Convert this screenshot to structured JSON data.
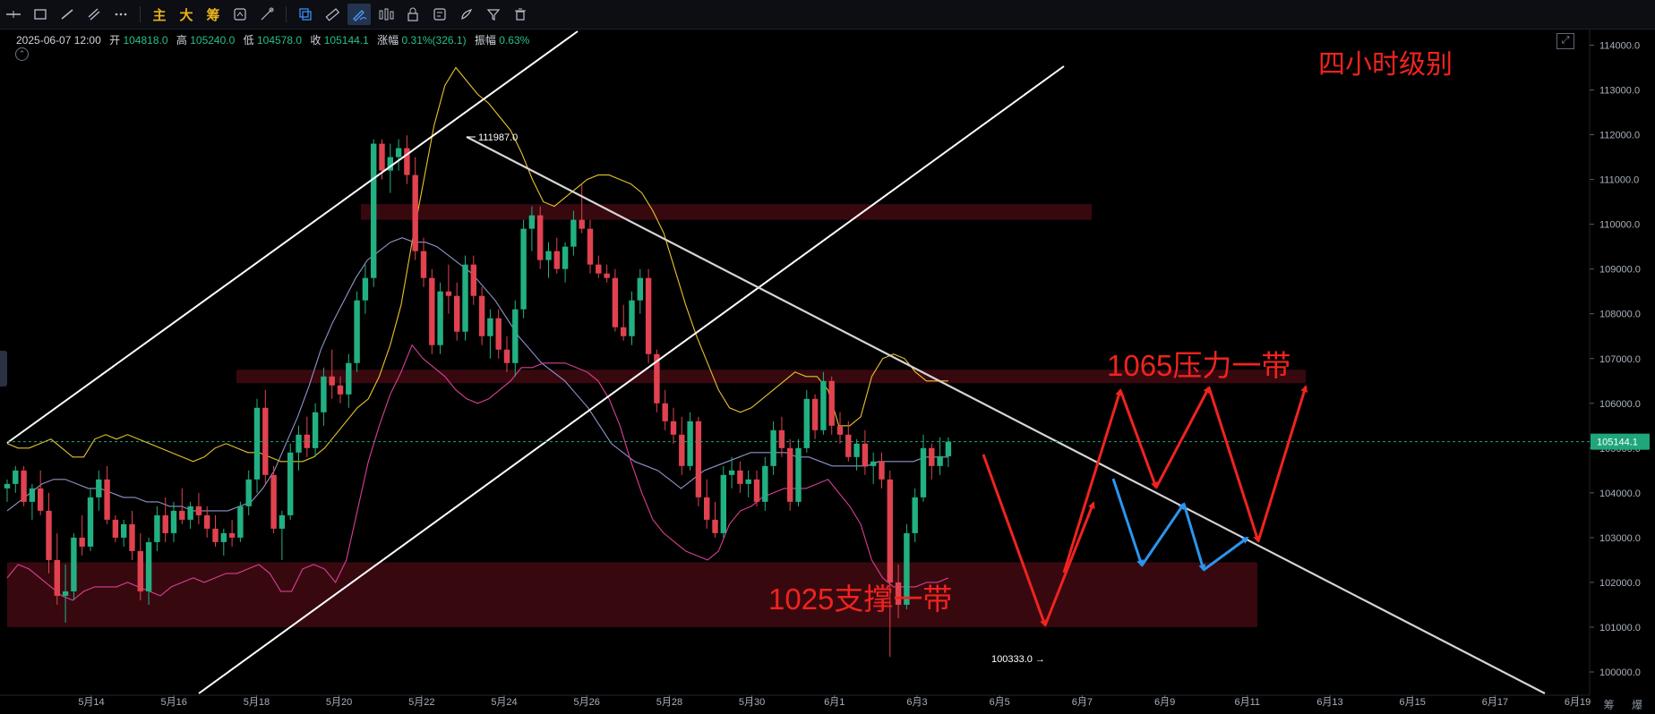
{
  "toolbar": {
    "left_tools": [
      "horizontal-line-icon",
      "rectangle-icon",
      "trend-line-icon",
      "parallel-channel-icon",
      "more-icon"
    ],
    "indicator_labels": [
      "主",
      "大",
      "筹"
    ],
    "right_tools": [
      "layers-icon",
      "ruler-icon",
      "pen-icon",
      "bars-icon",
      "lock-icon",
      "alert-icon",
      "brush-icon",
      "filter-icon",
      "trash-icon"
    ]
  },
  "info": {
    "datetime": "2025-06-07 12:00",
    "open_label": "开",
    "open": "104818.0",
    "high_label": "高",
    "high": "105240.0",
    "low_label": "低",
    "low": "104578.0",
    "close_label": "收",
    "close": "105144.1",
    "change_label": "涨幅",
    "change": "0.31%(326.1)",
    "amplitude_label": "振幅",
    "amplitude": "0.63%"
  },
  "corner_buttons": "筹 爆",
  "chart_data": {
    "type": "candlestick",
    "title": "四小时级别",
    "ylim": [
      99600,
      114400
    ],
    "x_ticks": [
      "5月14",
      "5月16",
      "5月18",
      "5月20",
      "5月22",
      "5月24",
      "5月26",
      "5月28",
      "5月30",
      "6月1",
      "6月3",
      "6月5",
      "6月7",
      "6月9",
      "6月11",
      "6月13",
      "6月15",
      "6月17",
      "6月19"
    ],
    "y_ticks": [
      100000,
      101000,
      102000,
      103000,
      104000,
      105000,
      106000,
      107000,
      108000,
      109000,
      110000,
      111000,
      112000,
      113000,
      114000
    ],
    "current_price": 105144.1,
    "colors": {
      "up": "#22b082",
      "down": "#e0424f",
      "upper_band": "#e6c42c",
      "middle_band": "#8f96c8",
      "lower_band": "#d93f95",
      "zone": "#3a0a10",
      "annotation_red": "#f0231f",
      "annotation_blue": "#2b95ee",
      "trend_white": "#ffffff",
      "descending_line": "#d5d5d5"
    },
    "annotations": {
      "resistance_label": "1065压力一带",
      "support_label": "1025支撑一带",
      "high_marker": "111987.0",
      "low_marker": "100333.0"
    },
    "zones": [
      {
        "name": "upper-zone",
        "low": 110100,
        "high": 110450
      },
      {
        "name": "resistance-zone",
        "low": 106450,
        "high": 106750
      },
      {
        "name": "support-zone",
        "low": 101000,
        "high": 102450
      }
    ],
    "candles": [
      [
        104100,
        104300,
        103800,
        104200
      ],
      [
        104200,
        104600,
        104000,
        104500
      ],
      [
        104500,
        104600,
        103700,
        103800
      ],
      [
        103800,
        104200,
        103400,
        104100
      ],
      [
        104100,
        104500,
        103500,
        103600
      ],
      [
        103600,
        104000,
        102200,
        102500
      ],
      [
        102500,
        103100,
        101500,
        101700
      ],
      [
        101700,
        102400,
        101100,
        101800
      ],
      [
        101800,
        103100,
        101600,
        103000
      ],
      [
        103000,
        103500,
        102600,
        102800
      ],
      [
        102800,
        104100,
        102700,
        103900
      ],
      [
        103900,
        104500,
        103600,
        104300
      ],
      [
        104300,
        104600,
        103300,
        103400
      ],
      [
        103400,
        103500,
        102900,
        103000
      ],
      [
        103000,
        103400,
        102800,
        103300
      ],
      [
        103300,
        103600,
        102500,
        102700
      ],
      [
        102700,
        103100,
        101600,
        101800
      ],
      [
        101800,
        103000,
        101500,
        102900
      ],
      [
        102900,
        103700,
        102700,
        103500
      ],
      [
        103500,
        103900,
        102900,
        103100
      ],
      [
        103100,
        103800,
        102900,
        103600
      ],
      [
        103600,
        104100,
        103300,
        103400
      ],
      [
        103400,
        103800,
        103200,
        103700
      ],
      [
        103700,
        104000,
        103300,
        103500
      ],
      [
        103500,
        103700,
        103000,
        103200
      ],
      [
        103200,
        103500,
        102800,
        102900
      ],
      [
        102900,
        103200,
        102600,
        103100
      ],
      [
        103100,
        103400,
        102800,
        103000
      ],
      [
        103000,
        103800,
        102900,
        103700
      ],
      [
        103700,
        104500,
        103500,
        104300
      ],
      [
        104300,
        106100,
        104000,
        105900
      ],
      [
        105900,
        106300,
        104200,
        104400
      ],
      [
        104400,
        104600,
        103100,
        103200
      ],
      [
        103200,
        103600,
        102500,
        103500
      ],
      [
        103500,
        105100,
        103400,
        104900
      ],
      [
        104900,
        105500,
        104500,
        105300
      ],
      [
        105300,
        105700,
        104800,
        105000
      ],
      [
        105000,
        106000,
        104800,
        105800
      ],
      [
        105800,
        106800,
        105500,
        106600
      ],
      [
        106600,
        107200,
        106100,
        106400
      ],
      [
        106400,
        106600,
        106000,
        106200
      ],
      [
        106200,
        107100,
        105900,
        106900
      ],
      [
        106900,
        108500,
        106700,
        108300
      ],
      [
        108300,
        109100,
        108000,
        108800
      ],
      [
        108800,
        111900,
        108600,
        111800
      ],
      [
        111800,
        111900,
        111000,
        111200
      ],
      [
        111200,
        111800,
        110700,
        111500
      ],
      [
        111500,
        111900,
        111200,
        111700
      ],
      [
        111700,
        111987,
        110900,
        111100
      ],
      [
        111100,
        111500,
        109200,
        109400
      ],
      [
        109400,
        109700,
        108600,
        108800
      ],
      [
        108800,
        109000,
        107100,
        107300
      ],
      [
        107300,
        108700,
        107100,
        108500
      ],
      [
        108500,
        109100,
        108000,
        108400
      ],
      [
        108400,
        108700,
        107400,
        107600
      ],
      [
        107600,
        109300,
        107400,
        109100
      ],
      [
        109100,
        109300,
        108200,
        108400
      ],
      [
        108400,
        108600,
        107300,
        107500
      ],
      [
        107500,
        108100,
        107000,
        107900
      ],
      [
        107900,
        108100,
        107000,
        107200
      ],
      [
        107200,
        107500,
        106700,
        106900
      ],
      [
        106900,
        108300,
        106600,
        108100
      ],
      [
        108100,
        110100,
        107900,
        109900
      ],
      [
        109900,
        110400,
        109400,
        110200
      ],
      [
        110200,
        110400,
        109000,
        109200
      ],
      [
        109200,
        109600,
        108800,
        109400
      ],
      [
        109400,
        109700,
        108900,
        109000
      ],
      [
        109000,
        109600,
        108700,
        109500
      ],
      [
        109500,
        110300,
        109300,
        110100
      ],
      [
        110100,
        110900,
        109800,
        109900
      ],
      [
        109900,
        110100,
        108900,
        109100
      ],
      [
        109100,
        109300,
        108800,
        108900
      ],
      [
        108900,
        109100,
        108700,
        108800
      ],
      [
        108800,
        109000,
        107600,
        107700
      ],
      [
        107700,
        108200,
        107400,
        107500
      ],
      [
        107500,
        108500,
        107300,
        108300
      ],
      [
        108300,
        109000,
        108000,
        108800
      ],
      [
        108800,
        109000,
        106900,
        107100
      ],
      [
        107100,
        107200,
        105800,
        106000
      ],
      [
        106000,
        106300,
        105400,
        105600
      ],
      [
        105600,
        105900,
        105100,
        105300
      ],
      [
        105300,
        105700,
        104400,
        104600
      ],
      [
        104600,
        105800,
        104500,
        105600
      ],
      [
        105600,
        105700,
        103700,
        103900
      ],
      [
        103900,
        104300,
        103200,
        103400
      ],
      [
        103400,
        103800,
        103000,
        103100
      ],
      [
        103100,
        104600,
        103000,
        104400
      ],
      [
        104400,
        104800,
        104100,
        104500
      ],
      [
        104500,
        104700,
        104000,
        104200
      ],
      [
        104200,
        104500,
        103900,
        104300
      ],
      [
        104300,
        104500,
        103700,
        103800
      ],
      [
        103800,
        104800,
        103600,
        104600
      ],
      [
        104600,
        105600,
        104400,
        105400
      ],
      [
        105400,
        105700,
        104800,
        105000
      ],
      [
        105000,
        105200,
        103600,
        103800
      ],
      [
        103800,
        105200,
        103700,
        105000
      ],
      [
        105000,
        106300,
        104900,
        106100
      ],
      [
        106100,
        106200,
        105200,
        105400
      ],
      [
        105400,
        106700,
        105300,
        106500
      ],
      [
        106500,
        106600,
        105300,
        105500
      ],
      [
        105500,
        105800,
        105100,
        105300
      ],
      [
        105300,
        105600,
        104700,
        104800
      ],
      [
        104800,
        105200,
        104500,
        105100
      ],
      [
        105100,
        105400,
        104400,
        104600
      ],
      [
        104600,
        104900,
        104200,
        104700
      ],
      [
        104700,
        104900,
        104100,
        104300
      ],
      [
        104300,
        104500,
        100333,
        102000
      ],
      [
        102000,
        102400,
        101200,
        101500
      ],
      [
        101500,
        103300,
        101400,
        103100
      ],
      [
        103100,
        104100,
        102900,
        103900
      ],
      [
        103900,
        105300,
        103800,
        105000
      ],
      [
        105000,
        105100,
        104300,
        104600
      ],
      [
        104600,
        105240,
        104400,
        104818
      ],
      [
        104818,
        105240,
        104578,
        105144
      ]
    ],
    "ma_upper": [
      105100,
      105000,
      105000,
      105100,
      105200,
      105000,
      104800,
      104800,
      105200,
      105300,
      105200,
      105300,
      105200,
      105100,
      105000,
      104900,
      104800,
      104700,
      104800,
      105000,
      105100,
      105000,
      104900,
      104900,
      104800,
      104700,
      104700,
      104700,
      104800,
      105000,
      105300,
      105600,
      105900,
      106100,
      106600,
      107300,
      108200,
      109600,
      110900,
      112200,
      113100,
      113500,
      113200,
      112900,
      112700,
      112400,
      112100,
      111600,
      111000,
      110500,
      110400,
      110600,
      110800,
      111000,
      111100,
      111100,
      111000,
      110900,
      110700,
      110300,
      109800,
      109000,
      108200,
      107500,
      106900,
      106300,
      105900,
      105800,
      105900,
      106100,
      106300,
      106500,
      106700,
      106600,
      106600,
      106300,
      105500,
      105500,
      105700,
      106600,
      107000,
      107100,
      107000,
      106700,
      106500,
      106500,
      106500
    ],
    "ma_middle": [
      103600,
      103800,
      104000,
      104200,
      104300,
      104300,
      104200,
      104100,
      104100,
      104000,
      103900,
      103900,
      103800,
      103800,
      103700,
      103700,
      103600,
      103600,
      103600,
      103600,
      103700,
      103800,
      104100,
      104500,
      105100,
      105700,
      106400,
      107200,
      107800,
      108300,
      108800,
      109200,
      109400,
      109600,
      109700,
      109600,
      109600,
      109500,
      109300,
      109100,
      108900,
      108600,
      108300,
      107900,
      107500,
      107200,
      106900,
      106700,
      106500,
      106200,
      105900,
      105500,
      105100,
      104900,
      104700,
      104600,
      104500,
      104300,
      104100,
      104300,
      104500,
      104600,
      104700,
      104800,
      104900,
      104900,
      104900,
      104900,
      104800,
      104800,
      104700,
      104600,
      104600,
      104600,
      104600,
      104700,
      104700,
      104700,
      104700,
      104800,
      104800,
      104800
    ],
    "ma_lower": [
      102100,
      102400,
      102300,
      102100,
      101900,
      101700,
      101600,
      101800,
      101900,
      101900,
      101900,
      102000,
      101900,
      101800,
      101700,
      101900,
      102000,
      102100,
      102000,
      102100,
      102200,
      102200,
      102300,
      102400,
      102200,
      101800,
      101800,
      102300,
      102400,
      102300,
      102000,
      102500,
      103600,
      104700,
      105500,
      106200,
      106700,
      107300,
      107000,
      106800,
      106600,
      106300,
      106100,
      106000,
      106100,
      106300,
      106500,
      106800,
      106800,
      106900,
      106900,
      106900,
      106800,
      106700,
      106500,
      106100,
      105500,
      104700,
      104000,
      103400,
      103100,
      102900,
      102700,
      102600,
      102500,
      102700,
      103300,
      103600,
      103700,
      103900,
      104000,
      104100,
      104100,
      104100,
      104200,
      104300,
      104000,
      103700,
      103300,
      102500,
      102100,
      101900,
      101900,
      101900,
      102000,
      102000,
      102100
    ]
  }
}
